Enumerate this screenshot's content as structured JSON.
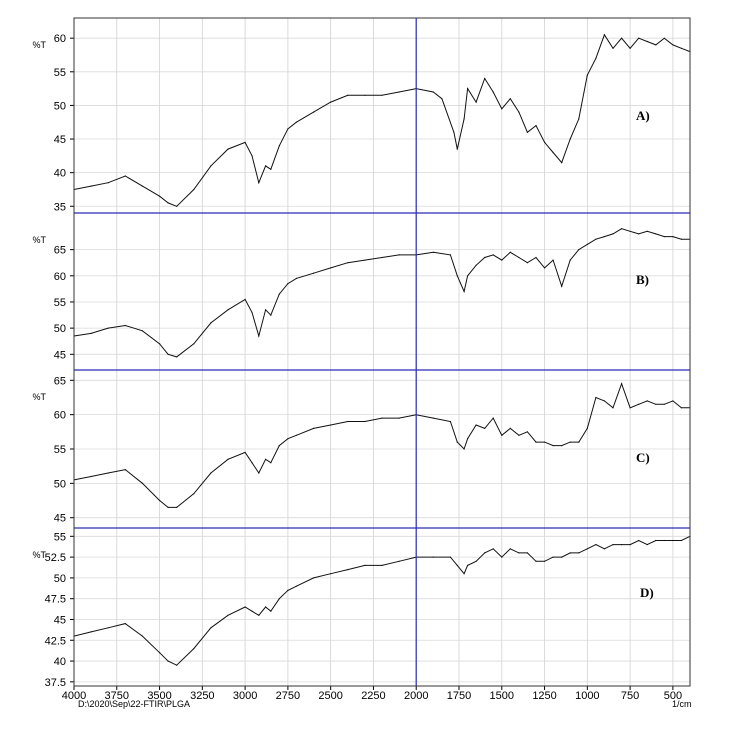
{
  "chart_data": {
    "type": "line",
    "x_unit": "1/cm",
    "xlim": [
      4000,
      400
    ],
    "x_ticks": [
      "4000",
      "3750",
      "3500",
      "3250",
      "3000",
      "2750",
      "2500",
      "2250",
      "2000",
      "1750",
      "1500",
      "1250",
      "1000",
      "750",
      "500"
    ],
    "footer": "D:\\2020\\Sep\\22-FTIR\\PLGA",
    "axis_label_right": "1/cm",
    "panels": [
      {
        "label": "A)",
        "ylabel": "%T",
        "ylim": [
          34,
          63
        ],
        "y_ticks": [
          "35",
          "40",
          "45",
          "50",
          "55",
          "60"
        ],
        "series": [
          {
            "x": [
              4000,
              3900,
              3800,
              3700,
              3600,
              3500,
              3450,
              3400,
              3300,
              3200,
              3100,
              3000,
              2960,
              2920,
              2880,
              2850,
              2800,
              2750,
              2700,
              2600,
              2500,
              2400,
              2300,
              2200,
              2100,
              2000,
              1900,
              1850,
              1780,
              1760,
              1720,
              1700,
              1650,
              1600,
              1550,
              1500,
              1450,
              1400,
              1350,
              1300,
              1250,
              1200,
              1150,
              1100,
              1050,
              1000,
              950,
              900,
              850,
              800,
              750,
              700,
              650,
              600,
              550,
              500,
              450,
              400
            ],
            "y": [
              37.5,
              38.0,
              38.5,
              39.5,
              38.0,
              36.5,
              35.5,
              35.0,
              37.5,
              41.0,
              43.5,
              44.5,
              42.5,
              38.5,
              41.0,
              40.5,
              44.0,
              46.5,
              47.5,
              49.0,
              50.5,
              51.5,
              51.5,
              51.5,
              52.0,
              52.5,
              52.0,
              51.0,
              46.0,
              43.5,
              48.0,
              52.5,
              50.5,
              54.0,
              52.0,
              49.5,
              51.0,
              49.0,
              46.0,
              47.0,
              44.5,
              43.0,
              41.5,
              45.0,
              48.0,
              54.5,
              57.0,
              60.5,
              58.5,
              60.0,
              58.5,
              60.0,
              59.5,
              59.0,
              60.0,
              59.0,
              58.5,
              58.0
            ]
          }
        ]
      },
      {
        "label": "B)",
        "ylabel": "%T",
        "ylim": [
          42,
          72
        ],
        "y_ticks": [
          "45",
          "50",
          "55",
          "60",
          "65"
        ],
        "series": [
          {
            "x": [
              4000,
              3900,
              3800,
              3700,
              3600,
              3500,
              3450,
              3400,
              3300,
              3200,
              3100,
              3000,
              2960,
              2920,
              2880,
              2850,
              2800,
              2750,
              2700,
              2600,
              2500,
              2400,
              2300,
              2200,
              2100,
              2000,
              1900,
              1800,
              1760,
              1720,
              1700,
              1650,
              1600,
              1550,
              1500,
              1450,
              1400,
              1350,
              1300,
              1250,
              1200,
              1150,
              1100,
              1050,
              1000,
              950,
              900,
              850,
              800,
              750,
              700,
              650,
              600,
              550,
              500,
              450,
              400
            ],
            "y": [
              48.5,
              49.0,
              50.0,
              50.5,
              49.5,
              47.0,
              45.0,
              44.5,
              47.0,
              51.0,
              53.5,
              55.5,
              53.0,
              48.5,
              53.5,
              52.5,
              56.5,
              58.5,
              59.5,
              60.5,
              61.5,
              62.5,
              63.0,
              63.5,
              64.0,
              64.0,
              64.5,
              64.0,
              60.0,
              57.0,
              60.0,
              62.0,
              63.5,
              64.0,
              63.0,
              64.5,
              63.5,
              62.5,
              63.5,
              61.5,
              63.0,
              58.0,
              63.0,
              65.0,
              66.0,
              67.0,
              67.5,
              68.0,
              69.0,
              68.5,
              68.0,
              68.5,
              68.0,
              67.5,
              67.5,
              67.0,
              67.0
            ]
          }
        ]
      },
      {
        "label": "C)",
        "ylabel": "%T",
        "ylim": [
          43.5,
          66.5
        ],
        "y_ticks": [
          "45",
          "50",
          "55",
          "60",
          "65"
        ],
        "series": [
          {
            "x": [
              4000,
              3900,
              3800,
              3700,
              3600,
              3500,
              3450,
              3400,
              3300,
              3200,
              3100,
              3000,
              2960,
              2920,
              2880,
              2850,
              2800,
              2750,
              2700,
              2600,
              2500,
              2400,
              2300,
              2200,
              2100,
              2000,
              1900,
              1800,
              1760,
              1720,
              1700,
              1650,
              1600,
              1550,
              1500,
              1450,
              1400,
              1350,
              1300,
              1250,
              1200,
              1150,
              1100,
              1050,
              1000,
              950,
              900,
              850,
              800,
              750,
              700,
              650,
              600,
              550,
              500,
              450,
              400
            ],
            "y": [
              50.5,
              51.0,
              51.5,
              52.0,
              50.0,
              47.5,
              46.5,
              46.5,
              48.5,
              51.5,
              53.5,
              54.5,
              53.0,
              51.5,
              53.5,
              53.0,
              55.5,
              56.5,
              57.0,
              58.0,
              58.5,
              59.0,
              59.0,
              59.5,
              59.5,
              60.0,
              59.5,
              59.0,
              56.0,
              55.0,
              56.5,
              58.5,
              58.0,
              59.5,
              57.0,
              58.0,
              57.0,
              57.5,
              56.0,
              56.0,
              55.5,
              55.5,
              56.0,
              56.0,
              58.0,
              62.5,
              62.0,
              61.0,
              64.5,
              61.0,
              61.5,
              62.0,
              61.5,
              61.5,
              62.0,
              61.0,
              61.0
            ]
          }
        ]
      },
      {
        "label": "D)",
        "ylabel": "%T",
        "ylim": [
          37,
          56
        ],
        "y_ticks": [
          "37.5",
          "40",
          "42.5",
          "45",
          "47.5",
          "50",
          "52.5",
          "55"
        ],
        "series": [
          {
            "x": [
              4000,
              3900,
              3800,
              3700,
              3600,
              3500,
              3450,
              3400,
              3300,
              3200,
              3100,
              3000,
              2960,
              2920,
              2880,
              2850,
              2800,
              2750,
              2700,
              2600,
              2500,
              2400,
              2300,
              2200,
              2100,
              2000,
              1900,
              1800,
              1760,
              1720,
              1700,
              1650,
              1600,
              1550,
              1500,
              1450,
              1400,
              1350,
              1300,
              1250,
              1200,
              1150,
              1100,
              1050,
              1000,
              950,
              900,
              850,
              800,
              750,
              700,
              650,
              600,
              550,
              500,
              450,
              400
            ],
            "y": [
              43.0,
              43.5,
              44.0,
              44.5,
              43.0,
              41.0,
              40.0,
              39.5,
              41.5,
              44.0,
              45.5,
              46.5,
              46.0,
              45.5,
              46.5,
              46.0,
              47.5,
              48.5,
              49.0,
              50.0,
              50.5,
              51.0,
              51.5,
              51.5,
              52.0,
              52.5,
              52.5,
              52.5,
              51.5,
              50.5,
              51.5,
              52.0,
              53.0,
              53.5,
              52.5,
              53.5,
              53.0,
              53.0,
              52.0,
              52.0,
              52.5,
              52.5,
              53.0,
              53.0,
              53.5,
              54.0,
              53.5,
              54.0,
              54.0,
              54.0,
              54.5,
              54.0,
              54.5,
              54.5,
              54.5,
              54.5,
              55.0
            ]
          }
        ]
      }
    ]
  }
}
